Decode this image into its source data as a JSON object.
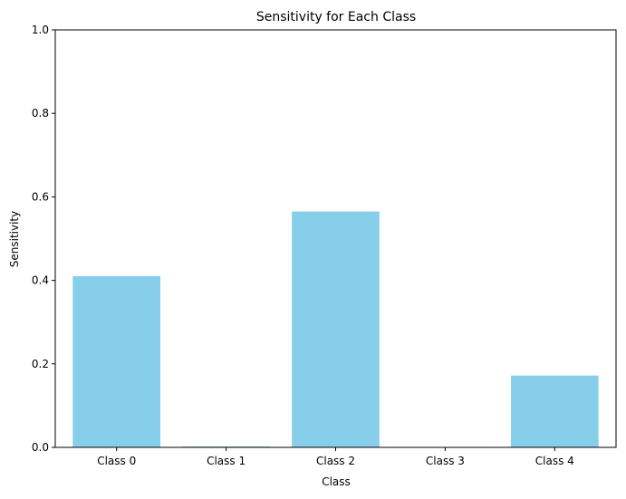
{
  "chart_data": {
    "type": "bar",
    "title": "Sensitivity for Each Class",
    "xlabel": "Class",
    "ylabel": "Sensitivity",
    "categories": [
      "Class 0",
      "Class 1",
      "Class 2",
      "Class 3",
      "Class 4"
    ],
    "values": [
      0.41,
      0.002,
      0.565,
      0.0,
      0.172
    ],
    "ylim": [
      0,
      1
    ],
    "yticks": [
      0.0,
      0.2,
      0.4,
      0.6,
      0.8,
      1.0
    ],
    "ytick_labels": [
      "0.0",
      "0.2",
      "0.4",
      "0.6",
      "0.8",
      "1.0"
    ],
    "grid": false,
    "legend": "none",
    "bar_color": "#87ceeb"
  }
}
